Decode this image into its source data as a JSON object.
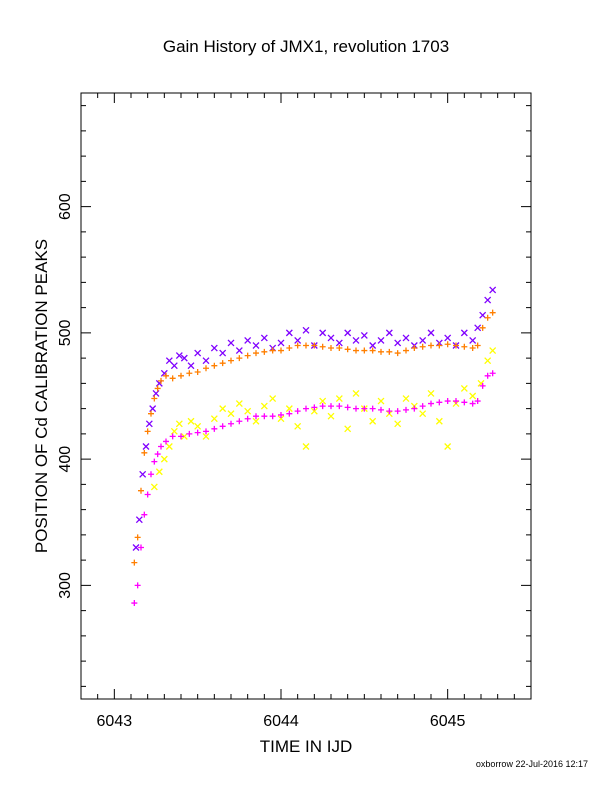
{
  "chart_data": {
    "type": "scatter",
    "title": "Gain History of JMX1, revolution 1703",
    "xlabel": "TIME IN IJD",
    "ylabel": "POSITION OF Cd CALIBRATION PEAKS",
    "footer": "oxborrow 22-Jul-2016 12:17",
    "xlim": [
      6042.8,
      6045.5
    ],
    "ylim": [
      210,
      690
    ],
    "x_ticks": [
      "6043",
      "6044",
      "6045"
    ],
    "y_ticks": [
      "300",
      "400",
      "500",
      "600"
    ],
    "grid": false,
    "series": [
      {
        "color": "#7f00ff",
        "marker": "x",
        "points": [
          [
            6043.13,
            330
          ],
          [
            6043.15,
            352
          ],
          [
            6043.17,
            388
          ],
          [
            6043.19,
            410
          ],
          [
            6043.21,
            428
          ],
          [
            6043.23,
            440
          ],
          [
            6043.25,
            452
          ],
          [
            6043.27,
            460
          ],
          [
            6043.3,
            468
          ],
          [
            6043.33,
            478
          ],
          [
            6043.36,
            474
          ],
          [
            6043.39,
            482
          ],
          [
            6043.42,
            480
          ],
          [
            6043.46,
            474
          ],
          [
            6043.5,
            484
          ],
          [
            6043.55,
            478
          ],
          [
            6043.6,
            488
          ],
          [
            6043.65,
            484
          ],
          [
            6043.7,
            492
          ],
          [
            6043.75,
            486
          ],
          [
            6043.8,
            494
          ],
          [
            6043.85,
            490
          ],
          [
            6043.9,
            496
          ],
          [
            6043.95,
            488
          ],
          [
            6044.0,
            492
          ],
          [
            6044.05,
            500
          ],
          [
            6044.1,
            494
          ],
          [
            6044.15,
            502
          ],
          [
            6044.2,
            490
          ],
          [
            6044.25,
            500
          ],
          [
            6044.3,
            496
          ],
          [
            6044.35,
            492
          ],
          [
            6044.4,
            500
          ],
          [
            6044.45,
            494
          ],
          [
            6044.5,
            498
          ],
          [
            6044.55,
            490
          ],
          [
            6044.6,
            494
          ],
          [
            6044.65,
            500
          ],
          [
            6044.7,
            492
          ],
          [
            6044.75,
            496
          ],
          [
            6044.8,
            490
          ],
          [
            6044.85,
            494
          ],
          [
            6044.9,
            500
          ],
          [
            6044.95,
            492
          ],
          [
            6045.0,
            496
          ],
          [
            6045.05,
            490
          ],
          [
            6045.1,
            500
          ],
          [
            6045.15,
            494
          ],
          [
            6045.18,
            504
          ],
          [
            6045.21,
            514
          ],
          [
            6045.24,
            526
          ],
          [
            6045.27,
            534
          ]
        ]
      },
      {
        "color": "#ff7f00",
        "marker": "+",
        "points": [
          [
            6043.12,
            318
          ],
          [
            6043.14,
            338
          ],
          [
            6043.16,
            375
          ],
          [
            6043.18,
            405
          ],
          [
            6043.2,
            422
          ],
          [
            6043.22,
            436
          ],
          [
            6043.24,
            448
          ],
          [
            6043.26,
            456
          ],
          [
            6043.28,
            462
          ],
          [
            6043.31,
            466
          ],
          [
            6043.35,
            464
          ],
          [
            6043.4,
            466
          ],
          [
            6043.45,
            468
          ],
          [
            6043.5,
            469
          ],
          [
            6043.55,
            472
          ],
          [
            6043.6,
            474
          ],
          [
            6043.65,
            476
          ],
          [
            6043.7,
            478
          ],
          [
            6043.75,
            480
          ],
          [
            6043.8,
            482
          ],
          [
            6043.85,
            484
          ],
          [
            6043.9,
            485
          ],
          [
            6043.95,
            486
          ],
          [
            6044.0,
            486
          ],
          [
            6044.05,
            488
          ],
          [
            6044.1,
            490
          ],
          [
            6044.15,
            490
          ],
          [
            6044.2,
            490
          ],
          [
            6044.25,
            489
          ],
          [
            6044.3,
            488
          ],
          [
            6044.35,
            488
          ],
          [
            6044.4,
            487
          ],
          [
            6044.45,
            486
          ],
          [
            6044.5,
            486
          ],
          [
            6044.55,
            486
          ],
          [
            6044.6,
            485
          ],
          [
            6044.65,
            485
          ],
          [
            6044.7,
            484
          ],
          [
            6044.75,
            486
          ],
          [
            6044.8,
            488
          ],
          [
            6044.85,
            489
          ],
          [
            6044.9,
            490
          ],
          [
            6044.95,
            490
          ],
          [
            6045.0,
            491
          ],
          [
            6045.05,
            490
          ],
          [
            6045.1,
            489
          ],
          [
            6045.15,
            488
          ],
          [
            6045.18,
            490
          ],
          [
            6045.21,
            504
          ],
          [
            6045.24,
            512
          ],
          [
            6045.27,
            516
          ]
        ]
      },
      {
        "color": "#ffff00",
        "marker": "x",
        "points": [
          [
            6043.24,
            378
          ],
          [
            6043.27,
            390
          ],
          [
            6043.3,
            400
          ],
          [
            6043.33,
            410
          ],
          [
            6043.36,
            422
          ],
          [
            6043.39,
            428
          ],
          [
            6043.42,
            418
          ],
          [
            6043.46,
            430
          ],
          [
            6043.5,
            426
          ],
          [
            6043.55,
            418
          ],
          [
            6043.6,
            432
          ],
          [
            6043.65,
            440
          ],
          [
            6043.7,
            436
          ],
          [
            6043.75,
            444
          ],
          [
            6043.8,
            438
          ],
          [
            6043.85,
            430
          ],
          [
            6043.9,
            442
          ],
          [
            6043.95,
            448
          ],
          [
            6044.0,
            432
          ],
          [
            6044.05,
            440
          ],
          [
            6044.1,
            426
          ],
          [
            6044.15,
            410
          ],
          [
            6044.2,
            438
          ],
          [
            6044.25,
            446
          ],
          [
            6044.3,
            434
          ],
          [
            6044.35,
            448
          ],
          [
            6044.4,
            424
          ],
          [
            6044.45,
            452
          ],
          [
            6044.5,
            440
          ],
          [
            6044.55,
            430
          ],
          [
            6044.6,
            446
          ],
          [
            6044.65,
            436
          ],
          [
            6044.7,
            428
          ],
          [
            6044.75,
            448
          ],
          [
            6044.8,
            442
          ],
          [
            6044.85,
            436
          ],
          [
            6044.9,
            452
          ],
          [
            6044.95,
            430
          ],
          [
            6045.0,
            410
          ],
          [
            6045.05,
            444
          ],
          [
            6045.1,
            456
          ],
          [
            6045.15,
            450
          ],
          [
            6045.2,
            460
          ],
          [
            6045.24,
            478
          ],
          [
            6045.27,
            486
          ]
        ]
      },
      {
        "color": "#ff00ff",
        "marker": "+",
        "points": [
          [
            6043.12,
            286
          ],
          [
            6043.14,
            300
          ],
          [
            6043.16,
            330
          ],
          [
            6043.18,
            356
          ],
          [
            6043.2,
            372
          ],
          [
            6043.22,
            388
          ],
          [
            6043.24,
            398
          ],
          [
            6043.26,
            404
          ],
          [
            6043.28,
            410
          ],
          [
            6043.31,
            414
          ],
          [
            6043.35,
            418
          ],
          [
            6043.4,
            418
          ],
          [
            6043.45,
            420
          ],
          [
            6043.5,
            421
          ],
          [
            6043.55,
            422
          ],
          [
            6043.6,
            424
          ],
          [
            6043.65,
            426
          ],
          [
            6043.7,
            428
          ],
          [
            6043.75,
            430
          ],
          [
            6043.8,
            432
          ],
          [
            6043.85,
            434
          ],
          [
            6043.9,
            434
          ],
          [
            6043.95,
            434
          ],
          [
            6044.0,
            435
          ],
          [
            6044.05,
            436
          ],
          [
            6044.1,
            438
          ],
          [
            6044.15,
            440
          ],
          [
            6044.2,
            441
          ],
          [
            6044.25,
            442
          ],
          [
            6044.3,
            442
          ],
          [
            6044.35,
            442
          ],
          [
            6044.4,
            441
          ],
          [
            6044.45,
            440
          ],
          [
            6044.5,
            440
          ],
          [
            6044.55,
            440
          ],
          [
            6044.6,
            439
          ],
          [
            6044.65,
            438
          ],
          [
            6044.7,
            438
          ],
          [
            6044.75,
            439
          ],
          [
            6044.8,
            440
          ],
          [
            6044.85,
            442
          ],
          [
            6044.9,
            444
          ],
          [
            6044.95,
            445
          ],
          [
            6045.0,
            446
          ],
          [
            6045.05,
            446
          ],
          [
            6045.1,
            445
          ],
          [
            6045.15,
            444
          ],
          [
            6045.18,
            446
          ],
          [
            6045.21,
            458
          ],
          [
            6045.24,
            466
          ],
          [
            6045.27,
            468
          ]
        ]
      }
    ]
  }
}
